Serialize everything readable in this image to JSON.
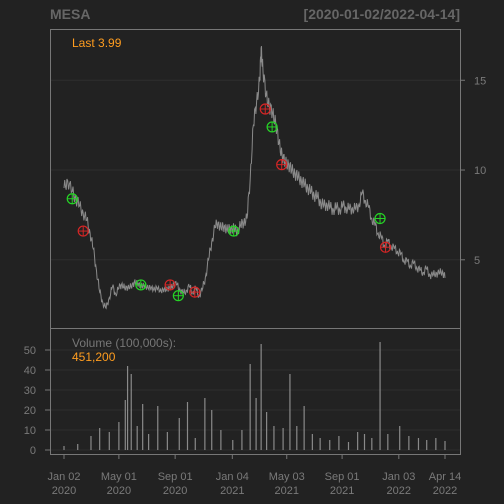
{
  "chart_data": {
    "type": "line",
    "symbol": "MESA",
    "date_range": "[2020-01-02/2022-04-14]",
    "price_panel": {
      "last_label": "Last 3.99",
      "ylim": [
        1.2,
        17.8
      ],
      "y_ticks": [
        5,
        10,
        15
      ],
      "series": [
        [
          "2020-01-02",
          9.0
        ],
        [
          "2020-01-10",
          9.4
        ],
        [
          "2020-01-20",
          8.8
        ],
        [
          "2020-01-28",
          8.4
        ],
        [
          "2020-02-05",
          8.0
        ],
        [
          "2020-02-13",
          7.6
        ],
        [
          "2020-02-21",
          7.2
        ],
        [
          "2020-02-28",
          6.5
        ],
        [
          "2020-03-06",
          5.6
        ],
        [
          "2020-03-13",
          4.4
        ],
        [
          "2020-03-20",
          3.2
        ],
        [
          "2020-03-27",
          2.6
        ],
        [
          "2020-04-03",
          2.3
        ],
        [
          "2020-04-10",
          2.9
        ],
        [
          "2020-04-17",
          3.5
        ],
        [
          "2020-04-24",
          3.1
        ],
        [
          "2020-05-01",
          3.4
        ],
        [
          "2020-05-08",
          3.7
        ],
        [
          "2020-05-15",
          3.3
        ],
        [
          "2020-05-22",
          3.6
        ],
        [
          "2020-05-29",
          3.4
        ],
        [
          "2020-06-05",
          3.9
        ],
        [
          "2020-06-12",
          3.5
        ],
        [
          "2020-06-19",
          3.7
        ],
        [
          "2020-06-26",
          3.4
        ],
        [
          "2020-07-03",
          3.6
        ],
        [
          "2020-07-10",
          3.3
        ],
        [
          "2020-07-17",
          3.5
        ],
        [
          "2020-07-24",
          3.3
        ],
        [
          "2020-07-31",
          3.4
        ],
        [
          "2020-08-07",
          3.2
        ],
        [
          "2020-08-14",
          3.5
        ],
        [
          "2020-08-21",
          3.3
        ],
        [
          "2020-08-28",
          3.7
        ],
        [
          "2020-09-04",
          3.6
        ],
        [
          "2020-09-11",
          3.4
        ],
        [
          "2020-09-18",
          3.1
        ],
        [
          "2020-09-25",
          3.3
        ],
        [
          "2020-10-02",
          3.5
        ],
        [
          "2020-10-09",
          3.2
        ],
        [
          "2020-10-16",
          3.4
        ],
        [
          "2020-10-23",
          3.0
        ],
        [
          "2020-10-30",
          3.3
        ],
        [
          "2020-11-06",
          4.0
        ],
        [
          "2020-11-13",
          5.0
        ],
        [
          "2020-11-20",
          6.0
        ],
        [
          "2020-11-27",
          6.8
        ],
        [
          "2020-12-04",
          7.1
        ],
        [
          "2020-12-11",
          6.7
        ],
        [
          "2020-12-18",
          6.9
        ],
        [
          "2020-12-25",
          6.6
        ],
        [
          "2021-01-01",
          6.8
        ],
        [
          "2021-01-08",
          6.7
        ],
        [
          "2021-01-15",
          6.6
        ],
        [
          "2021-01-22",
          6.9
        ],
        [
          "2021-01-29",
          7.1
        ],
        [
          "2021-02-05",
          7.3
        ],
        [
          "2021-02-12",
          9.5
        ],
        [
          "2021-02-19",
          12.5
        ],
        [
          "2021-02-26",
          13.8
        ],
        [
          "2021-03-05",
          15.0
        ],
        [
          "2021-03-08",
          16.8
        ],
        [
          "2021-03-12",
          15.5
        ],
        [
          "2021-03-19",
          14.2
        ],
        [
          "2021-03-26",
          13.5
        ],
        [
          "2021-04-02",
          13.2
        ],
        [
          "2021-04-09",
          12.6
        ],
        [
          "2021-04-16",
          11.5
        ],
        [
          "2021-04-23",
          10.8
        ],
        [
          "2021-04-30",
          10.4
        ],
        [
          "2021-05-07",
          10.3
        ],
        [
          "2021-05-14",
          10.0
        ],
        [
          "2021-05-21",
          9.8
        ],
        [
          "2021-05-28",
          9.6
        ],
        [
          "2021-06-04",
          9.4
        ],
        [
          "2021-06-11",
          9.2
        ],
        [
          "2021-06-18",
          9.0
        ],
        [
          "2021-06-25",
          8.8
        ],
        [
          "2021-07-02",
          8.6
        ],
        [
          "2021-07-09",
          8.5
        ],
        [
          "2021-07-16",
          8.2
        ],
        [
          "2021-07-23",
          8.0
        ],
        [
          "2021-07-30",
          8.1
        ],
        [
          "2021-08-06",
          7.9
        ],
        [
          "2021-08-13",
          7.8
        ],
        [
          "2021-08-20",
          7.9
        ],
        [
          "2021-08-27",
          7.8
        ],
        [
          "2021-09-03",
          8.0
        ],
        [
          "2021-09-10",
          7.9
        ],
        [
          "2021-09-17",
          7.8
        ],
        [
          "2021-09-24",
          7.9
        ],
        [
          "2021-10-01",
          7.8
        ],
        [
          "2021-10-08",
          8.1
        ],
        [
          "2021-10-15",
          8.7
        ],
        [
          "2021-10-22",
          8.3
        ],
        [
          "2021-10-29",
          7.9
        ],
        [
          "2021-11-05",
          7.3
        ],
        [
          "2021-11-12",
          6.9
        ],
        [
          "2021-11-19",
          6.5
        ],
        [
          "2021-11-26",
          6.2
        ],
        [
          "2021-12-03",
          5.8
        ],
        [
          "2021-12-10",
          6.0
        ],
        [
          "2021-12-17",
          5.8
        ],
        [
          "2021-12-24",
          5.6
        ],
        [
          "2021-12-31",
          5.5
        ],
        [
          "2022-01-07",
          5.3
        ],
        [
          "2022-01-14",
          5.0
        ],
        [
          "2022-01-21",
          4.9
        ],
        [
          "2022-01-28",
          4.7
        ],
        [
          "2022-02-04",
          4.8
        ],
        [
          "2022-02-11",
          4.6
        ],
        [
          "2022-02-18",
          4.4
        ],
        [
          "2022-02-25",
          4.3
        ],
        [
          "2022-03-04",
          4.5
        ],
        [
          "2022-03-11",
          4.2
        ],
        [
          "2022-03-18",
          4.1
        ],
        [
          "2022-03-25",
          4.3
        ],
        [
          "2022-04-01",
          4.2
        ],
        [
          "2022-04-08",
          4.4
        ],
        [
          "2022-04-14",
          3.99
        ]
      ],
      "markers": [
        {
          "date": "2020-01-20",
          "value": 8.4,
          "kind": "buy"
        },
        {
          "date": "2020-02-13",
          "value": 6.6,
          "kind": "sell"
        },
        {
          "date": "2020-06-18",
          "value": 3.6,
          "kind": "buy"
        },
        {
          "date": "2020-08-21",
          "value": 3.6,
          "kind": "sell"
        },
        {
          "date": "2020-09-08",
          "value": 3.0,
          "kind": "buy"
        },
        {
          "date": "2020-10-14",
          "value": 3.2,
          "kind": "sell"
        },
        {
          "date": "2021-01-07",
          "value": 6.6,
          "kind": "buy"
        },
        {
          "date": "2021-03-17",
          "value": 13.4,
          "kind": "sell"
        },
        {
          "date": "2021-04-01",
          "value": 12.4,
          "kind": "buy"
        },
        {
          "date": "2021-04-22",
          "value": 10.3,
          "kind": "sell"
        },
        {
          "date": "2021-11-23",
          "value": 7.3,
          "kind": "buy"
        },
        {
          "date": "2021-12-05",
          "value": 5.7,
          "kind": "sell"
        }
      ]
    },
    "volume_panel": {
      "label": "Volume (100,000s):",
      "last_value": "451,200",
      "ylim": [
        0,
        55
      ],
      "y_ticks": [
        0,
        10,
        20,
        30,
        40,
        50
      ],
      "series": [
        [
          "2020-01-02",
          2
        ],
        [
          "2020-02-01",
          3
        ],
        [
          "2020-03-01",
          7
        ],
        [
          "2020-03-20",
          11
        ],
        [
          "2020-04-10",
          9
        ],
        [
          "2020-05-01",
          14
        ],
        [
          "2020-05-15",
          25
        ],
        [
          "2020-05-20",
          42
        ],
        [
          "2020-05-28",
          38
        ],
        [
          "2020-06-10",
          12
        ],
        [
          "2020-06-22",
          23
        ],
        [
          "2020-07-05",
          8
        ],
        [
          "2020-07-25",
          22
        ],
        [
          "2020-08-15",
          9
        ],
        [
          "2020-09-10",
          16
        ],
        [
          "2020-09-28",
          24
        ],
        [
          "2020-10-15",
          6
        ],
        [
          "2020-11-05",
          26
        ],
        [
          "2020-11-20",
          20
        ],
        [
          "2020-12-10",
          10
        ],
        [
          "2021-01-05",
          5
        ],
        [
          "2021-01-25",
          10
        ],
        [
          "2021-02-12",
          43
        ],
        [
          "2021-02-25",
          26
        ],
        [
          "2021-03-08",
          53
        ],
        [
          "2021-03-20",
          19
        ],
        [
          "2021-04-05",
          12
        ],
        [
          "2021-04-25",
          11
        ],
        [
          "2021-05-10",
          38
        ],
        [
          "2021-05-25",
          12
        ],
        [
          "2021-06-10",
          22
        ],
        [
          "2021-06-28",
          8
        ],
        [
          "2021-07-15",
          6
        ],
        [
          "2021-08-05",
          5
        ],
        [
          "2021-08-25",
          7
        ],
        [
          "2021-09-15",
          4
        ],
        [
          "2021-10-05",
          9
        ],
        [
          "2021-10-20",
          8
        ],
        [
          "2021-11-05",
          6
        ],
        [
          "2021-11-23",
          54
        ],
        [
          "2021-12-10",
          8
        ],
        [
          "2022-01-05",
          12
        ],
        [
          "2022-01-25",
          7
        ],
        [
          "2022-02-15",
          6
        ],
        [
          "2022-03-05",
          5
        ],
        [
          "2022-03-25",
          6
        ],
        [
          "2022-04-14",
          4.512
        ]
      ]
    },
    "x_ticks": [
      {
        "date": "2020-01-02",
        "label": "Jan 02",
        "year": "2020"
      },
      {
        "date": "2020-05-01",
        "label": "May 01",
        "year": "2020"
      },
      {
        "date": "2020-09-01",
        "label": "Sep 01",
        "year": "2020"
      },
      {
        "date": "2021-01-04",
        "label": "Jan 04",
        "year": "2021"
      },
      {
        "date": "2021-05-03",
        "label": "May 03",
        "year": "2021"
      },
      {
        "date": "2021-09-01",
        "label": "Sep 01",
        "year": "2021"
      },
      {
        "date": "2022-01-03",
        "label": "Jan 03",
        "year": "2022"
      },
      {
        "date": "2022-04-14",
        "label": "Apr 14",
        "year": "2022"
      }
    ],
    "grid": true,
    "colors": {
      "background": "#222222",
      "frame": "#777777",
      "grid": "#2e2e2e",
      "line": "#8a8a8a",
      "text": "#777777",
      "accent": "#ff9d1f",
      "buy": "#26d426",
      "sell": "#d42626"
    }
  }
}
